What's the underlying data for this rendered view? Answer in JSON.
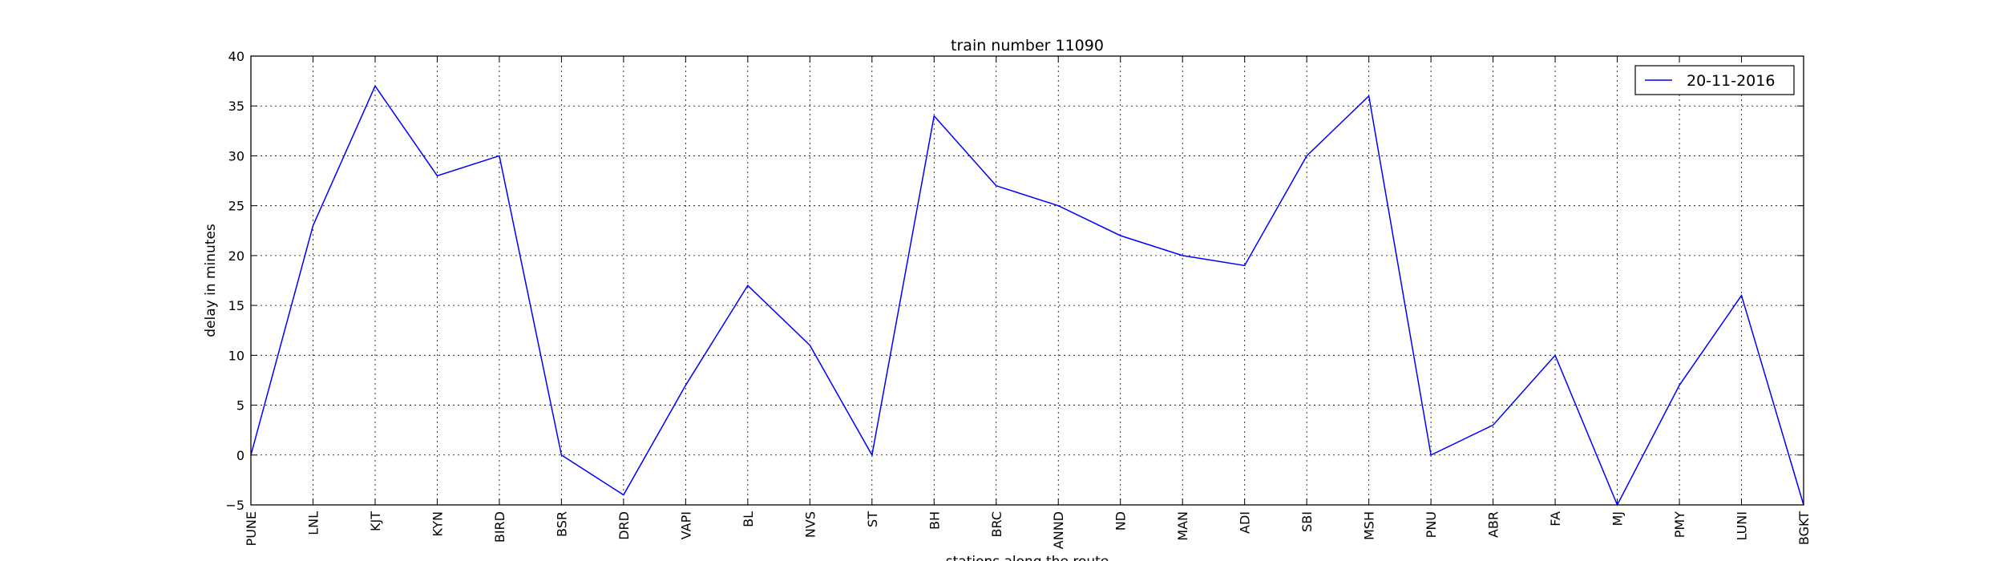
{
  "chart_data": {
    "type": "line",
    "title": "train number 11090",
    "xlabel": "stations along the route",
    "ylabel": "delay in minutes",
    "ylim": [
      -5,
      40
    ],
    "yticks": [
      -5,
      0,
      5,
      10,
      15,
      20,
      25,
      30,
      35,
      40
    ],
    "grid": true,
    "legend_position": "top-right",
    "categories": [
      "PUNE",
      "LNL",
      "KJT",
      "KYN",
      "BIRD",
      "BSR",
      "DRD",
      "VAPI",
      "BL",
      "NVS",
      "ST",
      "BH",
      "BRC",
      "ANND",
      "ND",
      "MAN",
      "ADI",
      "SBI",
      "MSH",
      "PNU",
      "ABR",
      "FA",
      "MJ",
      "PMY",
      "LUNI",
      "BGKT"
    ],
    "series": [
      {
        "name": "20-11-2016",
        "color": "#0000ff",
        "values": [
          0,
          23,
          37,
          28,
          30,
          0,
          -4,
          7,
          17,
          11,
          0,
          34,
          27,
          25,
          22,
          20,
          19,
          30,
          36,
          0,
          3,
          10,
          -5,
          7,
          16,
          -5
        ]
      }
    ]
  }
}
